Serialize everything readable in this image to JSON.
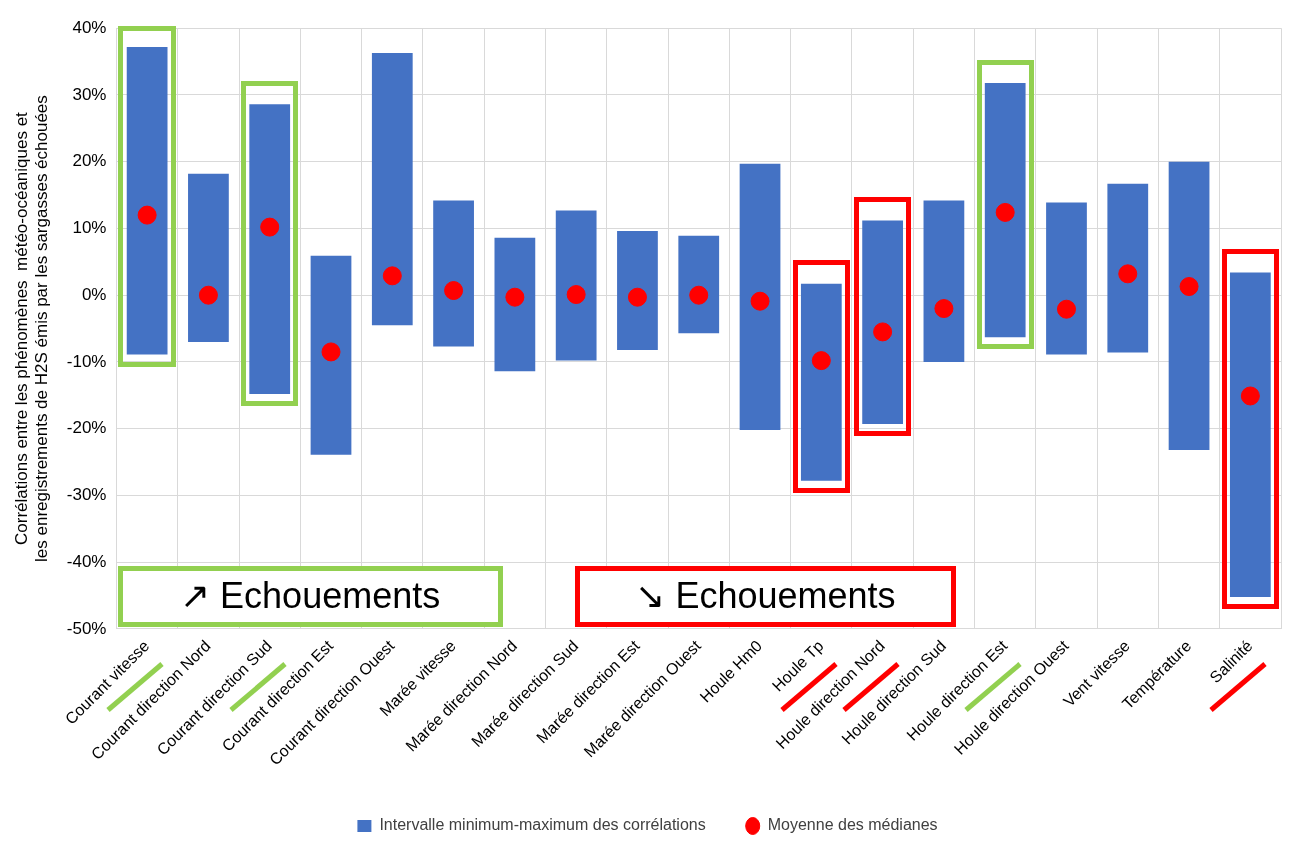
{
  "chart_data": {
    "type": "bar",
    "ylabel": "Corrélations entre les phénomènes  météo-océaniques et les enregistrements de H2S émis par les sargasses échouées",
    "categories": [
      "Courant vitesse",
      "Courant direction Nord",
      "Courant direction Sud",
      "Courant direction Est",
      "Courant direction Ouest",
      "Marée vitesse",
      "Marée direction Nord",
      "Marée direction Sud",
      "Marée direction Est",
      "Marée direction Ouest",
      "Houle Hm0",
      "Houle Tp",
      "Houle direction Nord",
      "Houle direction Sud",
      "Houle direction Est",
      "Houle direction Ouest",
      "Vent vitesse",
      "Température",
      "Salinité"
    ],
    "series": [
      {
        "name": "Intervalle minimum-maximum des corrélations",
        "color": "#4472c4",
        "base": [
          -8.9,
          -7.0,
          -14.8,
          -23.9,
          -4.5,
          -7.7,
          -11.4,
          -9.8,
          -8.2,
          -5.7,
          -20.2,
          -27.8,
          -19.3,
          -10.0,
          -6.3,
          -8.9,
          -8.6,
          -23.2,
          -45.2
        ],
        "values": [
          46.1,
          25.2,
          43.4,
          29.8,
          40.8,
          21.9,
          20.0,
          22.5,
          17.8,
          14.6,
          39.9,
          29.5,
          30.5,
          24.2,
          38.1,
          22.8,
          25.3,
          43.2,
          48.6
        ]
      },
      {
        "name": "Moyenne des médianes",
        "type": "scatter",
        "color": "#ff0000",
        "x": [
          "Courant vitesse",
          "Courant direction Nord",
          "Courant direction Sud",
          "Courant direction Est",
          "Courant direction Ouest",
          "Marée vitesse",
          "Marée direction Nord",
          "Marée direction Sud",
          "Marée direction Est",
          "Marée direction Ouest",
          "Houle Hm0",
          "Houle Tp",
          "Houle direction Nord",
          "Houle direction Sud",
          "Houle direction Est",
          "Houle direction Ouest",
          "Vent vitesse",
          "Température",
          "Salinité"
        ],
        "values": [
          12.0,
          0.0,
          10.2,
          -8.5,
          2.9,
          0.7,
          -0.3,
          0.1,
          -0.3,
          0.0,
          -0.9,
          -9.8,
          -5.5,
          -2.0,
          12.4,
          -2.1,
          3.2,
          1.3,
          -15.1
        ]
      }
    ],
    "marker": "circle",
    "ylim": [
      -50,
      40
    ],
    "yticks": [
      {
        "value": -50,
        "label": "-50%"
      },
      {
        "value": -40,
        "label": "-40%"
      },
      {
        "value": -30,
        "label": "-30%"
      },
      {
        "value": -20,
        "label": "-20%"
      },
      {
        "value": -10,
        "label": "-10%"
      },
      {
        "value": 0,
        "label": "0%"
      },
      {
        "value": 10,
        "label": "10%"
      },
      {
        "value": 20,
        "label": "20%"
      },
      {
        "value": 30,
        "label": "30%"
      },
      {
        "value": 40,
        "label": "40%"
      }
    ],
    "grid": true,
    "legend": "bottom",
    "annotations": [
      "↗ Echouements",
      "↘ Echouements"
    ]
  }
}
